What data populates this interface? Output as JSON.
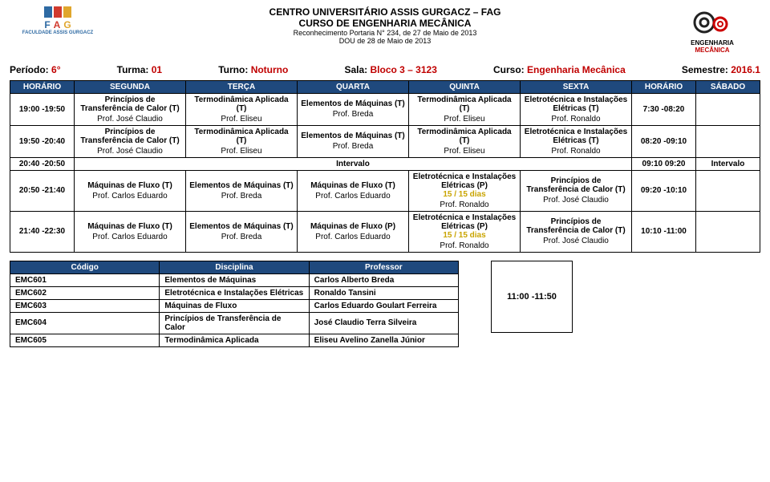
{
  "header": {
    "line1": "CENTRO UNIVERSITÁRIO ASSIS GURGACZ – FAG",
    "line2": "CURSO DE ENGENHARIA MECÂNICA",
    "line3": "Reconhecimento Portaria N° 234, de 27 de Maio de 2013",
    "line4": "DOU de 28 de Maio de 2013",
    "left_sub": "FACULDADE ASSIS GURGACZ",
    "right_line1": "ENGENHARIA",
    "right_line2": "MECÂNICA"
  },
  "period": {
    "periodo_lbl": "Período:",
    "periodo": "6°",
    "turma_lbl": "Turma:",
    "turma": "01",
    "turno_lbl": "Turno:",
    "turno": "Noturno",
    "sala_lbl": "Sala:",
    "sala": "Bloco 3 – 3123",
    "curso_lbl": "Curso:",
    "curso": "Engenharia Mecânica",
    "sem_lbl": "Semestre:",
    "sem": "2016.1"
  },
  "cols": [
    "HORÁRIO",
    "SEGUNDA",
    "TERÇA",
    "QUARTA",
    "QUINTA",
    "SEXTA",
    "HORÁRIO",
    "SÁBADO"
  ],
  "rows": [
    {
      "time": "19:00 -19:50",
      "seg": {
        "t": "Princípios de Transferência de Calor (T)",
        "p": "Prof. José Claudio"
      },
      "ter": {
        "t": "Termodinâmica Aplicada (T)",
        "p": "Prof. Eliseu"
      },
      "qua": {
        "t": "Elementos de Máquinas (T)",
        "p": "Prof. Breda"
      },
      "qui": {
        "t": "Termodinâmica Aplicada (T)",
        "p": "Prof. Eliseu"
      },
      "sex": {
        "t": "Eletrotécnica e Instalações Elétricas (T)",
        "p": "Prof. Ronaldo"
      },
      "time2": "7:30 -08:20",
      "sab": ""
    },
    {
      "time": "19:50 -20:40",
      "seg": {
        "t": "Princípios de Transferência de Calor (T)",
        "p": "Prof. José Claudio"
      },
      "ter": {
        "t": "Termodinâmica Aplicada (T)",
        "p": "Prof. Eliseu"
      },
      "qua": {
        "t": "Elementos de Máquinas (T)",
        "p": "Prof. Breda"
      },
      "qui": {
        "t": "Termodinâmica Aplicada (T)",
        "p": "Prof. Eliseu"
      },
      "sex": {
        "t": "Eletrotécnica e Instalações Elétricas (T)",
        "p": "Prof. Ronaldo"
      },
      "time2": "08:20 -09:10",
      "sab": ""
    }
  ],
  "intervalo": {
    "time": "20:40 -20:50",
    "label": "Intervalo",
    "time2": "09:10 09:20",
    "label2": "Intervalo"
  },
  "rows2": [
    {
      "time": "20:50 -21:40",
      "seg": {
        "t": "Máquinas de Fluxo (T)",
        "p": "Prof. Carlos Eduardo"
      },
      "ter": {
        "t": "Elementos de Máquinas (T)",
        "p": "Prof. Breda"
      },
      "qua": {
        "t": "Máquinas de Fluxo (T)",
        "p": "Prof. Carlos Eduardo"
      },
      "qui": {
        "t": "Eletrotécnica e Instalações Elétricas (P)",
        "y": "15 / 15 dias",
        "p": "Prof. Ronaldo"
      },
      "sex": {
        "t": "Princípios de Transferência de Calor (T)",
        "p": "Prof. José Claudio"
      },
      "time2": "09:20 -10:10",
      "sab": ""
    },
    {
      "time": "21:40 -22:30",
      "seg": {
        "t": "Máquinas de Fluxo (T)",
        "p": "Prof. Carlos Eduardo"
      },
      "ter": {
        "t": "Elementos de Máquinas (T)",
        "p": "Prof. Breda"
      },
      "qua": {
        "t": "Máquinas de Fluxo (P)",
        "p": "Prof. Carlos Eduardo"
      },
      "qui": {
        "t": "Eletrotécnica e Instalações Elétricas (P)",
        "y": "15 / 15 dias",
        "p": "Prof. Ronaldo"
      },
      "sex": {
        "t": "Princípios de Transferência de Calor (T)",
        "p": "Prof. José Claudio"
      },
      "time2": "10:10 -11:00",
      "sab": ""
    }
  ],
  "legend": {
    "cols": [
      "Código",
      "Disciplina",
      "Professor"
    ],
    "rows": [
      [
        "EMC601",
        "Elementos de Máquinas",
        "Carlos Alberto Breda"
      ],
      [
        "EMC602",
        "Eletrotécnica e Instalações Elétricas",
        "Ronaldo Tansini"
      ],
      [
        "EMC603",
        "Máquinas de Fluxo",
        "Carlos Eduardo Goulart Ferreira"
      ],
      [
        "EMC604",
        "Princípios de Transferência de Calor",
        "José Claudio Terra Silveira"
      ],
      [
        "EMC605",
        "Termodinâmica Aplicada",
        "Eliseu Avelino Zanella Júnior"
      ]
    ],
    "slot": "11:00 -11:50"
  }
}
